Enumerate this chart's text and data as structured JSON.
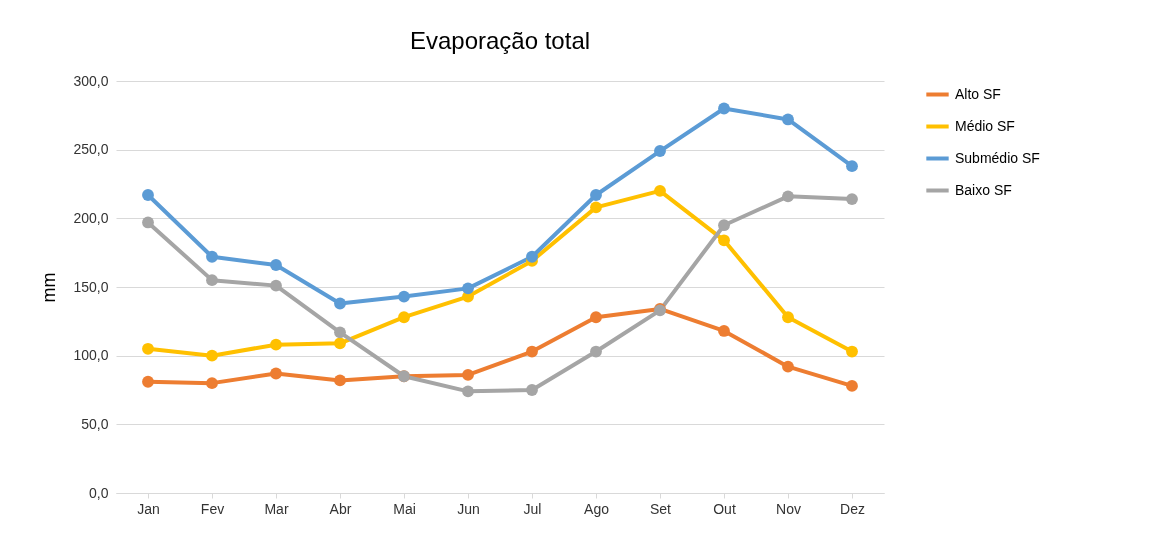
{
  "chart_data": {
    "type": "line",
    "title": "Evaporação total",
    "ylabel": "mm",
    "categories": [
      "Jan",
      "Fev",
      "Mar",
      "Abr",
      "Mai",
      "Jun",
      "Jul",
      "Ago",
      "Set",
      "Out",
      "Nov",
      "Dez"
    ],
    "series": [
      {
        "name": "Alto SF",
        "color": "#ed7d31",
        "values": [
          81,
          80,
          87,
          82,
          85,
          86,
          103,
          128,
          134,
          118,
          92,
          78
        ]
      },
      {
        "name": "Médio SF",
        "color": "#ffc000",
        "values": [
          105,
          100,
          108,
          109,
          128,
          143,
          169,
          208,
          220,
          184,
          128,
          103
        ]
      },
      {
        "name": "Submédio SF",
        "color": "#5b9bd5",
        "values": [
          217,
          172,
          166,
          138,
          143,
          149,
          172,
          217,
          249,
          280,
          272,
          238
        ]
      },
      {
        "name": "Baixo SF",
        "color": "#a5a5a5",
        "values": [
          197,
          155,
          151,
          117,
          85,
          74,
          75,
          103,
          133,
          195,
          216,
          214
        ]
      }
    ],
    "ylim": [
      0,
      300
    ],
    "yticks": [
      {
        "value": 0,
        "label": "0,0"
      },
      {
        "value": 50,
        "label": "50,0"
      },
      {
        "value": 100,
        "label": "100,0"
      },
      {
        "value": 150,
        "label": "150,0"
      },
      {
        "value": 200,
        "label": "200,0"
      },
      {
        "value": 250,
        "label": "250,0"
      },
      {
        "value": 300,
        "label": "300,0"
      }
    ],
    "grid": "y",
    "legend": "right",
    "marker": "circle",
    "line_style": "solid"
  }
}
